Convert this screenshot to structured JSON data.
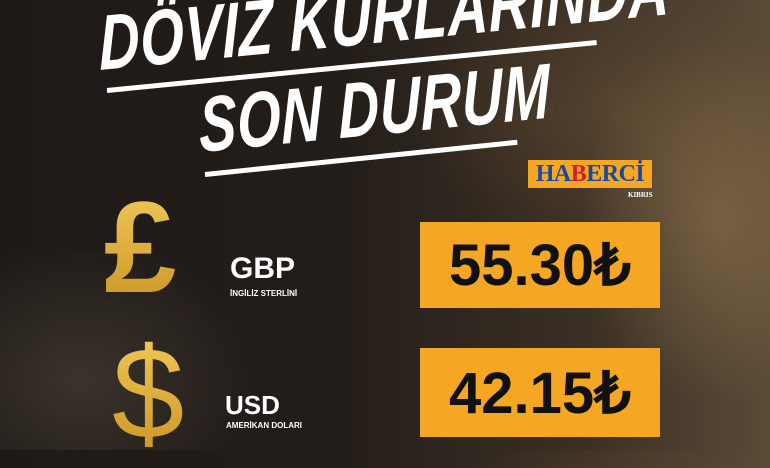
{
  "headline": {
    "line1": "DÖVİZ KURLARINDA",
    "line2": "SON DURUM"
  },
  "logo": {
    "part1": "HA",
    "part2": "B",
    "part3": "ERCİ",
    "sub": "KIBRIS"
  },
  "currencies": [
    {
      "symbol": "£",
      "icon": "pound-sign-icon",
      "code": "GBP",
      "name": "İNGİLİZ STERLİNİ",
      "rate": "55.30₺"
    },
    {
      "symbol": "$",
      "icon": "dollar-sign-icon",
      "code": "USD",
      "name": "AMERİKAN DOLARI",
      "rate": "42.15₺"
    }
  ],
  "colors": {
    "accent": "#f5a623",
    "gold": "#d9a52e",
    "logo_blue": "#1a4aa0",
    "logo_red": "#d0202a"
  }
}
